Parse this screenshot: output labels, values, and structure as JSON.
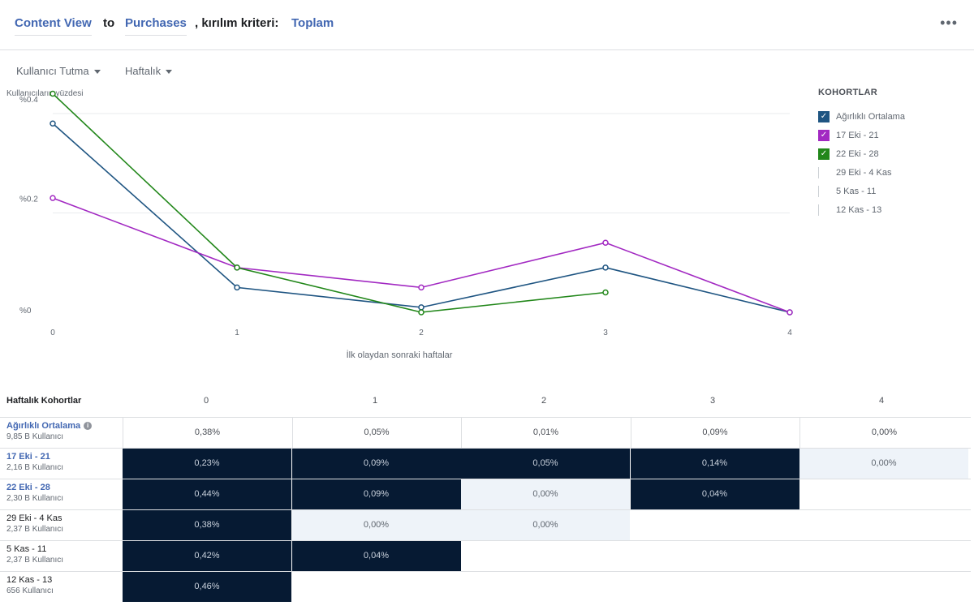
{
  "header": {
    "event_from": "Content View",
    "to_word": "to",
    "event_to": "Purchases",
    "breakdown_label": ", kırılım kriteri:",
    "breakdown_value": "Toplam",
    "more_icon": "more-horizontal-icon"
  },
  "controls": {
    "metric_dropdown": "Kullanıcı Tutma",
    "interval_dropdown": "Haftalık"
  },
  "colors": {
    "weighted": "#1f5582",
    "purple": "#a229c2",
    "green": "#22871a",
    "heat_dark": "#061a33",
    "heat_light": "#eef3f9",
    "link": "#4267b2"
  },
  "chart_data": {
    "type": "line",
    "ylabel": "Kullanıcıların yüzdesi",
    "xlabel": "İlk olaydan sonraki haftalar",
    "x": [
      0,
      1,
      2,
      3,
      4
    ],
    "ylim": [
      0,
      0.4
    ],
    "yticks": [
      "%0",
      "%0.2",
      "%0.4"
    ],
    "ytick_values": [
      0,
      0.2,
      0.4
    ],
    "grid": true,
    "series": [
      {
        "name": "Ağırlıklı Ortalama",
        "color": "#1f5582",
        "values": [
          0.38,
          0.05,
          0.01,
          0.09,
          0.0
        ]
      },
      {
        "name": "17 Eki - 21",
        "color": "#a229c2",
        "values": [
          0.23,
          0.09,
          0.05,
          0.14,
          0.0
        ]
      },
      {
        "name": "22 Eki - 28",
        "color": "#22871a",
        "values": [
          0.44,
          0.09,
          0.0,
          0.04,
          null
        ]
      }
    ],
    "legend_placement": "right"
  },
  "legend": {
    "title": "KOHORTLAR",
    "items": [
      {
        "label": "Ağırlıklı Ortalama",
        "checked": true,
        "color": "#1f5582"
      },
      {
        "label": "17 Eki - 21",
        "checked": true,
        "color": "#a229c2"
      },
      {
        "label": "22 Eki - 28",
        "checked": true,
        "color": "#22871a"
      },
      {
        "label": "29 Eki - 4 Kas",
        "checked": false,
        "color": "#ccd0d5"
      },
      {
        "label": "5 Kas - 11",
        "checked": false,
        "color": "#ccd0d5"
      },
      {
        "label": "12 Kas - 13",
        "checked": false,
        "color": "#ccd0d5"
      }
    ]
  },
  "table": {
    "header_label": "Haftalık Kohortlar",
    "columns": [
      "0",
      "1",
      "2",
      "3",
      "4"
    ],
    "rows": [
      {
        "name": "Ağırlıklı Ortalama",
        "sub": "9,85 B Kullanıcı",
        "link": true,
        "info": true,
        "cells": [
          {
            "v": "0,38%",
            "s": "plain"
          },
          {
            "v": "0,05%",
            "s": "plain"
          },
          {
            "v": "0,01%",
            "s": "plain"
          },
          {
            "v": "0,09%",
            "s": "plain"
          },
          {
            "v": "0,00%",
            "s": "plain"
          }
        ]
      },
      {
        "name": "17 Eki - 21",
        "sub": "2,16 B Kullanıcı",
        "link": true,
        "info": false,
        "cells": [
          {
            "v": "0,23%",
            "s": "dark"
          },
          {
            "v": "0,09%",
            "s": "dark"
          },
          {
            "v": "0,05%",
            "s": "dark"
          },
          {
            "v": "0,14%",
            "s": "dark"
          },
          {
            "v": "0,00%",
            "s": "light"
          }
        ]
      },
      {
        "name": "22 Eki - 28",
        "sub": "2,30 B Kullanıcı",
        "link": true,
        "info": false,
        "cells": [
          {
            "v": "0,44%",
            "s": "dark"
          },
          {
            "v": "0,09%",
            "s": "dark"
          },
          {
            "v": "0,00%",
            "s": "light"
          },
          {
            "v": "0,04%",
            "s": "dark"
          }
        ]
      },
      {
        "name": "29 Eki - 4 Kas",
        "sub": "2,37 B Kullanıcı",
        "link": false,
        "info": false,
        "cells": [
          {
            "v": "0,38%",
            "s": "dark"
          },
          {
            "v": "0,00%",
            "s": "light"
          },
          {
            "v": "0,00%",
            "s": "light"
          }
        ]
      },
      {
        "name": "5 Kas - 11",
        "sub": "2,37 B Kullanıcı",
        "link": false,
        "info": false,
        "cells": [
          {
            "v": "0,42%",
            "s": "dark"
          },
          {
            "v": "0,04%",
            "s": "dark"
          }
        ]
      },
      {
        "name": "12 Kas - 13",
        "sub": "656 Kullanıcı",
        "link": false,
        "info": false,
        "cells": [
          {
            "v": "0,46%",
            "s": "dark"
          }
        ]
      }
    ]
  }
}
